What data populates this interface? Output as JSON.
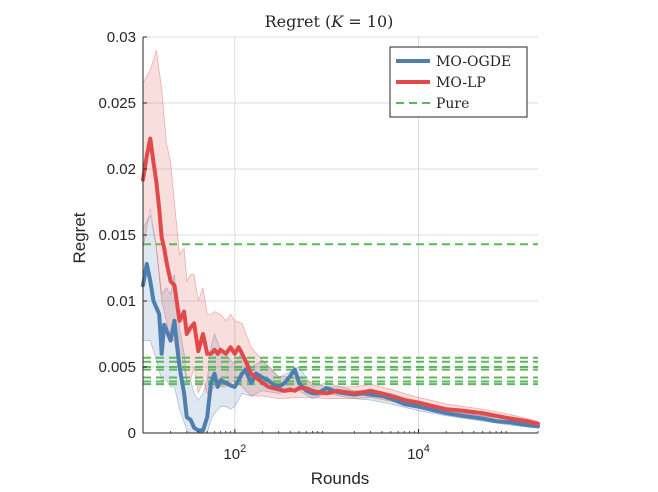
{
  "chart_data": {
    "type": "line",
    "title": "Regret (K = 10)",
    "title_parts": {
      "prefix": "Regret (",
      "var": "K",
      "suffix": " = 10)"
    },
    "xlabel": "Rounds",
    "ylabel": "Regret",
    "xscale": "log",
    "xlim": [
      10,
      200000
    ],
    "ylim": [
      0,
      0.03
    ],
    "grid": true,
    "legend_position": "top-right",
    "x_ticks": [
      {
        "value": 100,
        "base": "10",
        "exp": "2"
      },
      {
        "value": 10000,
        "base": "10",
        "exp": "4"
      }
    ],
    "y_ticks": [
      {
        "value": 0,
        "label": "0"
      },
      {
        "value": 0.005,
        "label": "0.005"
      },
      {
        "value": 0.01,
        "label": "0.01"
      },
      {
        "value": 0.015,
        "label": "0.015"
      },
      {
        "value": 0.02,
        "label": "0.02"
      },
      {
        "value": 0.025,
        "label": "0.025"
      },
      {
        "value": 0.03,
        "label": "0.03"
      }
    ],
    "series": [
      {
        "name": "MO-OGDE",
        "color": "#4e7fae",
        "style": "solid",
        "x": [
          10,
          11,
          12,
          13,
          14,
          15,
          16,
          17,
          18,
          20,
          22,
          25,
          28,
          30,
          33,
          36,
          40,
          45,
          50,
          55,
          60,
          65,
          70,
          80,
          90,
          100,
          110,
          120,
          130,
          150,
          170,
          200,
          230,
          260,
          300,
          350,
          400,
          450,
          500,
          600,
          700,
          800,
          1000,
          1300,
          1600,
          2000,
          2500,
          3000,
          4000,
          5000,
          7000,
          10000,
          15000,
          20000,
          30000,
          50000,
          70000,
          100000,
          150000,
          200000
        ],
        "y": [
          0.0112,
          0.0128,
          0.0115,
          0.01,
          0.0095,
          0.009,
          0.006,
          0.0082,
          0.0078,
          0.007,
          0.0085,
          0.005,
          0.003,
          0.0012,
          0.001,
          0.0004,
          0.0002,
          0.0002,
          0.0012,
          0.0038,
          0.0045,
          0.0035,
          0.004,
          0.0038,
          0.0036,
          0.0035,
          0.004,
          0.0045,
          0.0048,
          0.0038,
          0.0045,
          0.0042,
          0.004,
          0.0037,
          0.0035,
          0.0038,
          0.0043,
          0.0048,
          0.0038,
          0.0032,
          0.003,
          0.003,
          0.0034,
          0.0031,
          0.003,
          0.0029,
          0.003,
          0.0029,
          0.0028,
          0.0026,
          0.0022,
          0.002,
          0.0017,
          0.0015,
          0.0013,
          0.0011,
          0.0009,
          0.0008,
          0.0006,
          0.0005
        ]
      },
      {
        "name": "MO-LP",
        "color": "#e04a4a",
        "style": "solid",
        "x": [
          10,
          11,
          12,
          13,
          14,
          15,
          16,
          17,
          18,
          20,
          22,
          25,
          28,
          30,
          33,
          36,
          40,
          45,
          50,
          55,
          60,
          65,
          70,
          80,
          90,
          100,
          110,
          120,
          130,
          150,
          170,
          200,
          230,
          260,
          300,
          350,
          400,
          450,
          500,
          600,
          700,
          800,
          1000,
          1300,
          1600,
          2000,
          2500,
          3000,
          4000,
          5000,
          7000,
          10000,
          15000,
          20000,
          30000,
          50000,
          70000,
          100000,
          150000,
          200000
        ],
        "y": [
          0.0192,
          0.021,
          0.0223,
          0.0205,
          0.019,
          0.017,
          0.0148,
          0.014,
          0.013,
          0.0115,
          0.0112,
          0.0085,
          0.0092,
          0.0075,
          0.008,
          0.0083,
          0.0062,
          0.0075,
          0.006,
          0.006,
          0.0063,
          0.006,
          0.0063,
          0.006,
          0.0065,
          0.006,
          0.0065,
          0.006,
          0.0055,
          0.0045,
          0.0042,
          0.0038,
          0.0035,
          0.0034,
          0.0033,
          0.0032,
          0.0033,
          0.0032,
          0.0034,
          0.0034,
          0.0032,
          0.0031,
          0.003,
          0.0032,
          0.0031,
          0.003,
          0.0031,
          0.0032,
          0.003,
          0.0028,
          0.0025,
          0.0023,
          0.002,
          0.0018,
          0.0017,
          0.0015,
          0.0013,
          0.0011,
          0.0009,
          0.0007
        ]
      },
      {
        "name": "Pure",
        "color": "#5cb85c",
        "style": "dashed",
        "values": [
          0.0143,
          0.0057,
          0.0054,
          0.005,
          0.0048,
          0.0042,
          0.0039,
          0.0037
        ]
      }
    ],
    "bands": [
      {
        "series": "MO-OGDE",
        "color": "#4e7fae",
        "x": [
          10,
          12,
          14,
          16,
          18,
          20,
          22,
          25,
          28,
          30,
          33,
          36,
          40,
          45,
          50,
          55,
          60,
          70,
          80,
          90,
          100,
          120,
          150,
          200,
          300,
          500,
          700,
          1000,
          2000,
          3000,
          5000,
          10000,
          20000,
          50000,
          100000,
          200000
        ],
        "lower": [
          0.007,
          0.007,
          0.0055,
          0.004,
          0.004,
          0.0035,
          0.0035,
          0.0018,
          0.0008,
          0.0002,
          0,
          0,
          0,
          0,
          0,
          0.001,
          0.0015,
          0.002,
          0.002,
          0.0018,
          0.002,
          0.003,
          0.0028,
          0.0032,
          0.003,
          0.0032,
          0.0026,
          0.003,
          0.0026,
          0.0025,
          0.0022,
          0.0017,
          0.0013,
          0.0009,
          0.0006,
          0.0004
        ],
        "upper": [
          0.0155,
          0.0165,
          0.014,
          0.0105,
          0.011,
          0.0105,
          0.012,
          0.008,
          0.006,
          0.004,
          0.004,
          0.003,
          0.0025,
          0.003,
          0.004,
          0.0065,
          0.0075,
          0.0063,
          0.006,
          0.0055,
          0.0052,
          0.0062,
          0.005,
          0.0055,
          0.0042,
          0.005,
          0.0035,
          0.0038,
          0.0032,
          0.0032,
          0.003,
          0.0023,
          0.0017,
          0.0013,
          0.001,
          0.0007
        ]
      },
      {
        "series": "MO-LP",
        "color": "#e04a4a",
        "x": [
          10,
          12,
          14,
          16,
          18,
          20,
          22,
          25,
          28,
          30,
          33,
          36,
          40,
          45,
          50,
          55,
          60,
          70,
          80,
          90,
          100,
          120,
          150,
          200,
          300,
          500,
          700,
          1000,
          2000,
          3000,
          5000,
          10000,
          20000,
          50000,
          100000,
          200000
        ],
        "lower": [
          0.014,
          0.017,
          0.014,
          0.01,
          0.0085,
          0.007,
          0.007,
          0.0045,
          0.005,
          0.0038,
          0.004,
          0.005,
          0.003,
          0.004,
          0.003,
          0.0032,
          0.0035,
          0.0035,
          0.0035,
          0.0038,
          0.004,
          0.0035,
          0.0028,
          0.0028,
          0.0026,
          0.0027,
          0.0027,
          0.0026,
          0.0026,
          0.0027,
          0.0024,
          0.002,
          0.0016,
          0.0013,
          0.001,
          0.0006
        ],
        "upper": [
          0.0265,
          0.0275,
          0.029,
          0.026,
          0.022,
          0.0205,
          0.0175,
          0.0135,
          0.014,
          0.0115,
          0.012,
          0.012,
          0.01,
          0.011,
          0.009,
          0.009,
          0.0092,
          0.009,
          0.0085,
          0.009,
          0.0085,
          0.0083,
          0.0065,
          0.0055,
          0.0043,
          0.0042,
          0.0038,
          0.0035,
          0.0035,
          0.0037,
          0.0033,
          0.0027,
          0.0022,
          0.0018,
          0.0014,
          0.0009
        ]
      }
    ]
  }
}
